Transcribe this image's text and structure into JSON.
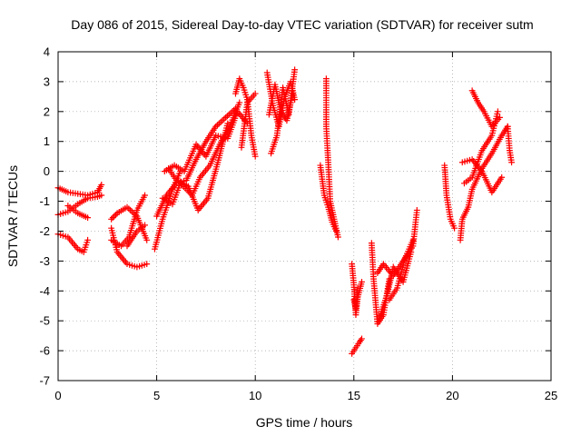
{
  "chart_data": {
    "type": "scatter",
    "title": "Day 086 of 2015, Sidereal Day-to-day VTEC variation (SDTVAR) for receiver sutm",
    "xlabel": "GPS time / hours",
    "ylabel": "SDTVAR / TECUs",
    "xlim": [
      0,
      25
    ],
    "ylim": [
      -7,
      4
    ],
    "xticks": [
      0,
      5,
      10,
      15,
      20,
      25
    ],
    "yticks": [
      -7,
      -6,
      -5,
      -4,
      -3,
      -2,
      -1,
      0,
      1,
      2,
      3,
      4
    ],
    "grid": true,
    "marker": "plus",
    "color": "#ff0000",
    "tracks": [
      {
        "x": [
          0.0,
          0.5,
          1.0,
          1.5,
          2.0,
          2.2
        ],
        "y": [
          -0.55,
          -0.7,
          -0.75,
          -0.8,
          -0.7,
          -0.45
        ]
      },
      {
        "x": [
          0.0,
          0.5,
          1.0,
          1.5,
          2.0,
          2.2
        ],
        "y": [
          -1.45,
          -1.35,
          -1.1,
          -0.9,
          -0.85,
          -0.8
        ]
      },
      {
        "x": [
          0.5,
          1.0,
          1.5
        ],
        "y": [
          -1.15,
          -1.4,
          -1.55
        ]
      },
      {
        "x": [
          0.0,
          0.5,
          1.0,
          1.3,
          1.5
        ],
        "y": [
          -2.1,
          -2.2,
          -2.6,
          -2.7,
          -2.3
        ]
      },
      {
        "x": [
          2.7,
          3.0,
          3.5,
          4.0,
          4.5
        ],
        "y": [
          -1.6,
          -1.4,
          -1.2,
          -1.5,
          -2.3
        ]
      },
      {
        "x": [
          2.7,
          3.0,
          3.5,
          4.0,
          4.5
        ],
        "y": [
          -1.9,
          -2.7,
          -3.1,
          -3.2,
          -3.1
        ]
      },
      {
        "x": [
          2.7,
          3.2,
          3.6,
          4.0,
          4.4
        ],
        "y": [
          -2.3,
          -2.5,
          -2.2,
          -1.3,
          -0.8
        ]
      },
      {
        "x": [
          3.5,
          4.0,
          4.4
        ],
        "y": [
          -2.5,
          -2.0,
          -1.8
        ]
      },
      {
        "x": [
          4.9,
          5.3,
          5.8,
          6.2
        ],
        "y": [
          -2.6,
          -1.6,
          -0.6,
          0.0
        ]
      },
      {
        "x": [
          5.0,
          5.5,
          6.0,
          6.5,
          7.0,
          7.5,
          8.0,
          8.5,
          9.0
        ],
        "y": [
          -1.5,
          -0.8,
          -0.4,
          -0.3,
          0.4,
          1.0,
          1.5,
          1.8,
          2.1
        ]
      },
      {
        "x": [
          5.3,
          5.8,
          6.2,
          6.8,
          7.2,
          7.7,
          8.2,
          8.7,
          9.2
        ],
        "y": [
          -0.9,
          -1.1,
          -0.4,
          -0.8,
          -0.2,
          0.2,
          0.9,
          1.5,
          2.3
        ]
      },
      {
        "x": [
          5.6,
          6.0,
          6.6,
          7.1,
          7.6,
          8.1,
          8.6
        ],
        "y": [
          0.1,
          -0.3,
          -0.5,
          -1.3,
          -0.9,
          0.3,
          1.6
        ]
      },
      {
        "x": [
          5.4,
          5.9,
          6.4,
          7.0,
          7.5,
          8.0,
          8.6,
          9.1,
          9.6
        ],
        "y": [
          0.0,
          0.2,
          0.0,
          0.9,
          0.5,
          1.2,
          1.1,
          2.0,
          1.6
        ]
      },
      {
        "x": [
          9.0,
          9.2,
          9.4,
          9.6,
          9.8,
          10.0
        ],
        "y": [
          2.6,
          3.1,
          2.8,
          2.4,
          1.2,
          0.5
        ]
      },
      {
        "x": [
          9.3,
          9.6,
          10.0
        ],
        "y": [
          0.8,
          2.3,
          2.6
        ]
      },
      {
        "x": [
          10.6,
          10.9,
          11.2,
          11.5,
          11.8,
          12.0
        ],
        "y": [
          3.3,
          2.2,
          1.5,
          2.5,
          3.0,
          2.4
        ]
      },
      {
        "x": [
          10.8,
          11.1,
          11.4,
          11.7,
          12.0
        ],
        "y": [
          0.6,
          1.2,
          2.8,
          1.9,
          3.4
        ]
      },
      {
        "x": [
          10.7,
          11.0,
          11.3,
          11.6,
          11.9
        ],
        "y": [
          1.9,
          2.9,
          2.0,
          1.7,
          2.6
        ]
      },
      {
        "x": [
          13.6,
          13.6,
          13.7,
          13.8,
          14.0,
          14.2
        ],
        "y": [
          3.1,
          1.5,
          0.3,
          -1.0,
          -1.6,
          -2.2
        ]
      },
      {
        "x": [
          13.3,
          13.5,
          13.7,
          13.9,
          14.1
        ],
        "y": [
          0.2,
          -0.8,
          -1.2,
          -1.7,
          -2.0
        ]
      },
      {
        "x": [
          14.9,
          15.0,
          15.1,
          15.2,
          15.4
        ],
        "y": [
          -3.1,
          -3.8,
          -4.8,
          -4.2,
          -3.7
        ]
      },
      {
        "x": [
          15.0,
          15.1,
          15.2
        ],
        "y": [
          -4.3,
          -4.6,
          -3.9
        ]
      },
      {
        "x": [
          14.9,
          15.1,
          15.3,
          15.4
        ],
        "y": [
          -6.1,
          -5.9,
          -5.7,
          -5.6
        ]
      },
      {
        "x": [
          15.9,
          16.0,
          16.2,
          16.5,
          16.8
        ],
        "y": [
          -2.4,
          -3.6,
          -5.1,
          -4.8,
          -3.6
        ]
      },
      {
        "x": [
          16.2,
          16.5,
          17.0,
          17.5,
          18.0,
          18.2
        ],
        "y": [
          -3.4,
          -3.1,
          -3.5,
          -3.0,
          -2.5,
          -1.3
        ]
      },
      {
        "x": [
          16.3,
          16.7,
          17.0,
          17.5,
          17.9
        ],
        "y": [
          -4.9,
          -4.1,
          -3.2,
          -3.7,
          -2.7
        ]
      },
      {
        "x": [
          16.8,
          17.2,
          17.6,
          18.0
        ],
        "y": [
          -4.3,
          -3.9,
          -2.9,
          -2.3
        ]
      },
      {
        "x": [
          19.6,
          19.7,
          19.9,
          20.1
        ],
        "y": [
          0.2,
          -0.8,
          -1.6,
          -1.9
        ]
      },
      {
        "x": [
          20.4,
          20.5,
          20.8,
          21.0,
          21.5,
          22.0,
          22.5,
          22.8
        ],
        "y": [
          -2.3,
          -1.6,
          -1.2,
          -0.6,
          0.1,
          0.6,
          1.2,
          1.5
        ]
      },
      {
        "x": [
          20.5,
          21.0,
          21.5,
          22.0,
          22.5
        ],
        "y": [
          0.3,
          0.4,
          0.0,
          -0.7,
          -0.2
        ]
      },
      {
        "x": [
          20.6,
          21.0,
          21.5,
          22.0,
          22.3
        ],
        "y": [
          -0.4,
          -0.2,
          0.7,
          1.2,
          2.0
        ]
      },
      {
        "x": [
          21.0,
          21.3,
          21.6,
          22.0,
          22.4
        ],
        "y": [
          2.7,
          2.3,
          2.0,
          1.5,
          1.8
        ]
      },
      {
        "x": [
          22.8,
          22.9,
          23.0
        ],
        "y": [
          1.5,
          0.7,
          0.3
        ]
      }
    ]
  }
}
